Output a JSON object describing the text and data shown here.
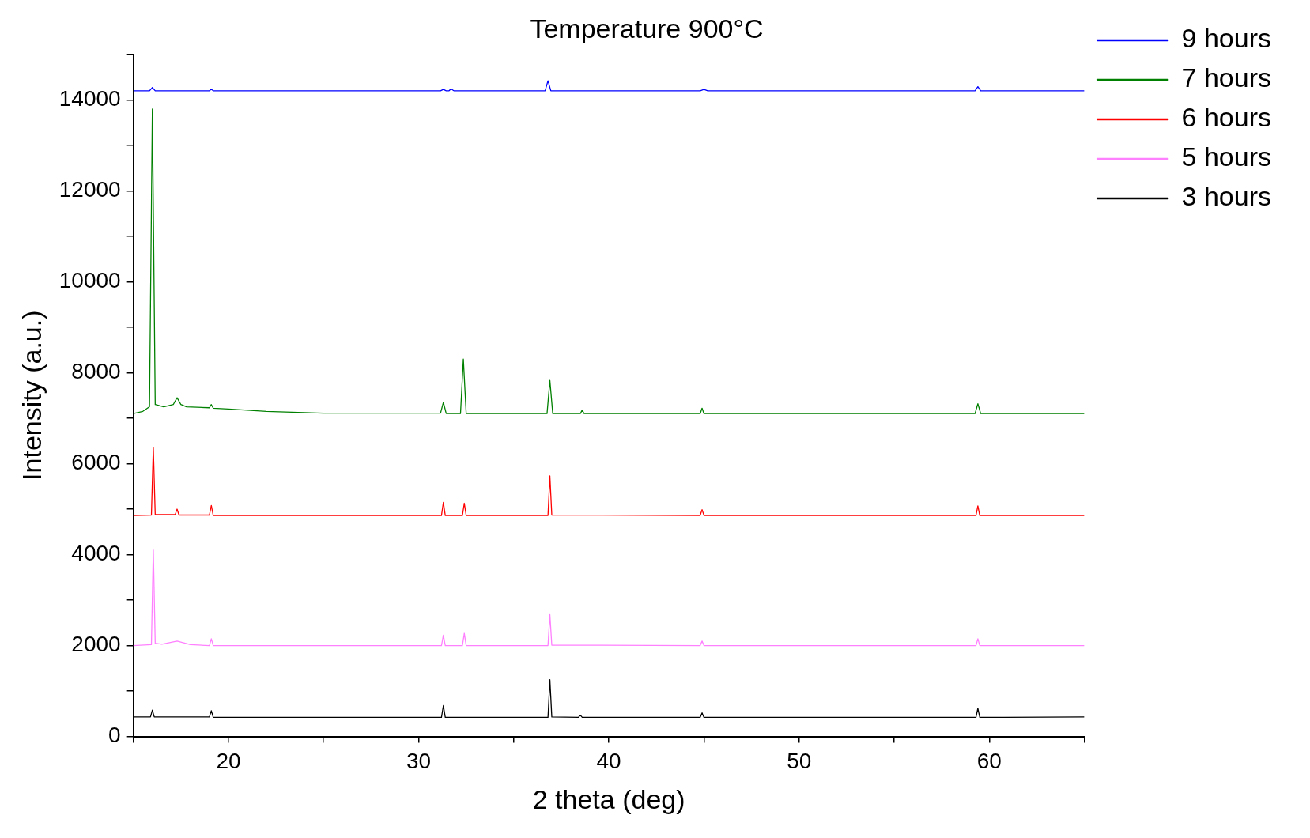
{
  "chart_data": {
    "type": "line",
    "title": "Temperature 900°C",
    "xlabel": "2 theta (deg)",
    "ylabel": "Intensity (a.u.)",
    "xlim": [
      15,
      65
    ],
    "ylim": [
      0,
      15000
    ],
    "xticks": [
      {
        "value": 15,
        "label": null
      },
      20,
      {
        "value": 25,
        "label": null
      },
      30,
      {
        "value": 35,
        "label": null
      },
      40,
      {
        "value": 45,
        "label": null
      },
      50,
      {
        "value": 55,
        "label": null
      },
      60,
      {
        "value": 65,
        "label": null
      }
    ],
    "yticks": [
      0,
      {
        "value": 1000,
        "label": null
      },
      2000,
      {
        "value": 3000,
        "label": null
      },
      4000,
      {
        "value": 5000,
        "label": null
      },
      6000,
      {
        "value": 7000,
        "label": null
      },
      8000,
      {
        "value": 9000,
        "label": null
      },
      10000,
      {
        "value": 11000,
        "label": null
      },
      12000,
      {
        "value": 13000,
        "label": null
      },
      14000,
      {
        "value": 15000,
        "label": null
      }
    ],
    "grid": false,
    "legend": "top right",
    "marker": "none",
    "line_style": "solid",
    "series": [
      {
        "name": "9 hours",
        "color": "#0000ff",
        "x": [
          15,
          15.85,
          16.0,
          16.15,
          19.0,
          19.1,
          19.2,
          31.15,
          31.3,
          31.45,
          31.6,
          31.7,
          31.85,
          36.65,
          36.8,
          36.95,
          44.8,
          45.0,
          45.2,
          59.25,
          59.4,
          59.55,
          65
        ],
        "values": [
          14200,
          14200,
          14270,
          14200,
          14200,
          14230,
          14200,
          14200,
          14230,
          14200,
          14200,
          14240,
          14200,
          14200,
          14420,
          14200,
          14200,
          14230,
          14200,
          14200,
          14290,
          14200,
          14200
        ]
      },
      {
        "name": "7 hours",
        "color": "#008000",
        "x": [
          15,
          15.5,
          15.85,
          16.0,
          16.15,
          16.6,
          17.1,
          17.3,
          17.5,
          17.8,
          19.0,
          19.1,
          19.2,
          20,
          22,
          25,
          31.15,
          31.3,
          31.45,
          32.2,
          32.35,
          32.5,
          36.75,
          36.9,
          37.05,
          38.5,
          38.6,
          38.7,
          44.8,
          44.9,
          45.0,
          59.25,
          59.4,
          59.55,
          65
        ],
        "values": [
          7100,
          7150,
          7250,
          13800,
          7300,
          7250,
          7300,
          7450,
          7300,
          7250,
          7230,
          7300,
          7220,
          7200,
          7150,
          7110,
          7110,
          7350,
          7100,
          7100,
          8300,
          7100,
          7100,
          7830,
          7100,
          7100,
          7180,
          7100,
          7100,
          7220,
          7100,
          7100,
          7320,
          7100,
          7100
        ]
      },
      {
        "name": "6 hours",
        "color": "#ff0000",
        "x": [
          15,
          15.95,
          16.05,
          16.15,
          17.2,
          17.3,
          17.4,
          19.0,
          19.1,
          19.2,
          31.2,
          31.3,
          31.4,
          32.3,
          32.4,
          32.5,
          36.8,
          36.9,
          37.0,
          44.8,
          44.9,
          45.0,
          59.3,
          59.4,
          59.5,
          65
        ],
        "values": [
          4860,
          4870,
          6350,
          4880,
          4880,
          5000,
          4870,
          4870,
          5080,
          4860,
          4860,
          5150,
          4860,
          4860,
          5130,
          4860,
          4860,
          5730,
          4870,
          4860,
          4990,
          4860,
          4860,
          5070,
          4860,
          4860
        ]
      },
      {
        "name": "5 hours",
        "color": "#ff80ff",
        "x": [
          15,
          15.95,
          16.05,
          16.15,
          16.5,
          17.3,
          18,
          19.0,
          19.1,
          19.2,
          31.2,
          31.3,
          31.4,
          32.3,
          32.4,
          32.5,
          36.8,
          36.9,
          37.0,
          44.8,
          44.9,
          45.0,
          59.3,
          59.4,
          59.5,
          65
        ],
        "values": [
          2000,
          2020,
          4100,
          2050,
          2030,
          2100,
          2020,
          2000,
          2150,
          2000,
          2000,
          2230,
          2000,
          2000,
          2270,
          2000,
          2000,
          2680,
          2010,
          2000,
          2100,
          2000,
          2000,
          2150,
          2000,
          2000
        ]
      },
      {
        "name": "3 hours",
        "color": "#000000",
        "x": [
          15,
          15.9,
          16.0,
          16.1,
          19.0,
          19.1,
          19.2,
          31.2,
          31.3,
          31.4,
          36.8,
          36.9,
          37.0,
          38.4,
          38.5,
          38.6,
          44.8,
          44.9,
          45.0,
          59.3,
          59.4,
          59.5,
          65
        ],
        "values": [
          430,
          430,
          580,
          430,
          430,
          570,
          420,
          420,
          680,
          420,
          420,
          1250,
          430,
          420,
          470,
          420,
          420,
          520,
          420,
          420,
          620,
          420,
          430
        ]
      }
    ]
  }
}
